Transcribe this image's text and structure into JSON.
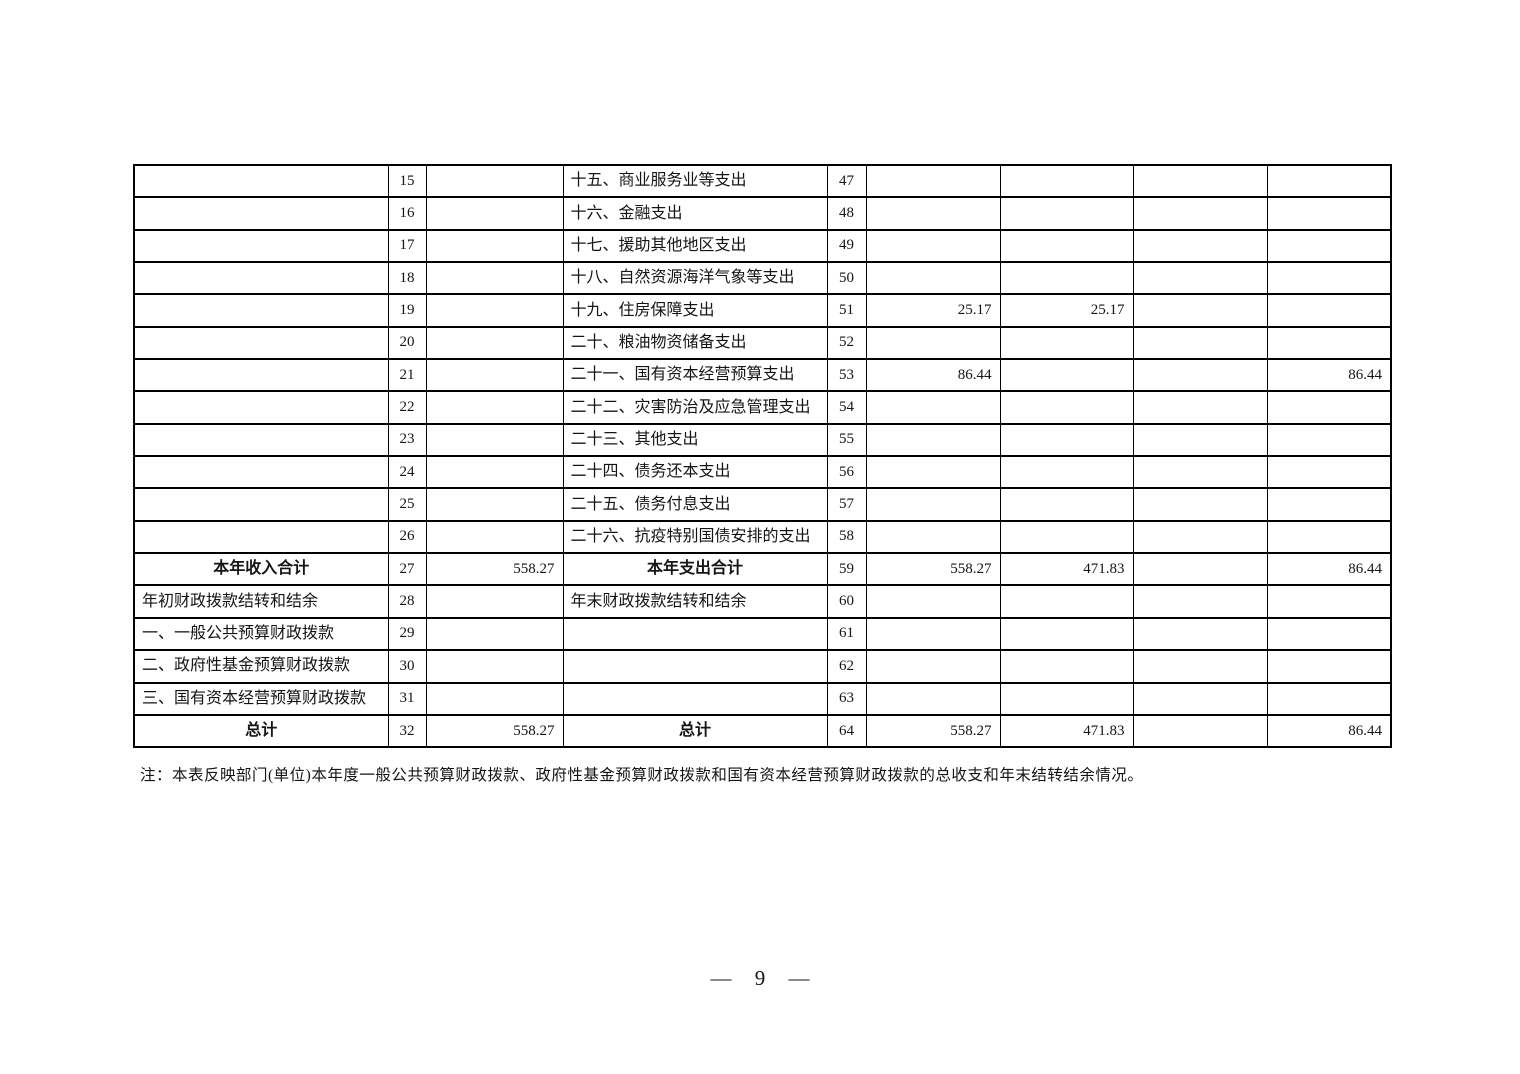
{
  "document": {
    "note": "注：本表反映部门(单位)本年度一般公共预算财政拨款、政府性基金预算财政拨款和国有资本经营预算财政拨款的总收支和年末结转结余情况。",
    "page_number": "— 9 —"
  },
  "table": {
    "column_names": [
      "income_item",
      "income_line_no",
      "income_amount",
      "expense_item",
      "expense_line_no",
      "expense_total",
      "expense_general_public_budget",
      "expense_government_fund",
      "expense_state_capital"
    ],
    "rows": [
      {
        "income": {
          "label": "",
          "line": "15",
          "amount": "",
          "align": "left",
          "bold": false
        },
        "expense": {
          "label": "十五、商业服务业等支出",
          "line": "47",
          "total": "",
          "general_budget": "",
          "gov_fund": "",
          "state_capital": "",
          "align": "left",
          "bold": false
        }
      },
      {
        "income": {
          "label": "",
          "line": "16",
          "amount": "",
          "align": "left",
          "bold": false
        },
        "expense": {
          "label": "十六、金融支出",
          "line": "48",
          "total": "",
          "general_budget": "",
          "gov_fund": "",
          "state_capital": "",
          "align": "left",
          "bold": false
        }
      },
      {
        "income": {
          "label": "",
          "line": "17",
          "amount": "",
          "align": "left",
          "bold": false
        },
        "expense": {
          "label": "十七、援助其他地区支出",
          "line": "49",
          "total": "",
          "general_budget": "",
          "gov_fund": "",
          "state_capital": "",
          "align": "left",
          "bold": false
        }
      },
      {
        "income": {
          "label": "",
          "line": "18",
          "amount": "",
          "align": "left",
          "bold": false
        },
        "expense": {
          "label": "十八、自然资源海洋气象等支出",
          "line": "50",
          "total": "",
          "general_budget": "",
          "gov_fund": "",
          "state_capital": "",
          "align": "left",
          "bold": false
        }
      },
      {
        "income": {
          "label": "",
          "line": "19",
          "amount": "",
          "align": "left",
          "bold": false
        },
        "expense": {
          "label": "十九、住房保障支出",
          "line": "51",
          "total": "25.17",
          "general_budget": "25.17",
          "gov_fund": "",
          "state_capital": "",
          "align": "left",
          "bold": false
        }
      },
      {
        "income": {
          "label": "",
          "line": "20",
          "amount": "",
          "align": "left",
          "bold": false
        },
        "expense": {
          "label": "二十、粮油物资储备支出",
          "line": "52",
          "total": "",
          "general_budget": "",
          "gov_fund": "",
          "state_capital": "",
          "align": "left",
          "bold": false
        }
      },
      {
        "income": {
          "label": "",
          "line": "21",
          "amount": "",
          "align": "left",
          "bold": false
        },
        "expense": {
          "label": "二十一、国有资本经营预算支出",
          "line": "53",
          "total": "86.44",
          "general_budget": "",
          "gov_fund": "",
          "state_capital": "86.44",
          "align": "left",
          "bold": false
        }
      },
      {
        "income": {
          "label": "",
          "line": "22",
          "amount": "",
          "align": "left",
          "bold": false
        },
        "expense": {
          "label": "二十二、灾害防治及应急管理支出",
          "line": "54",
          "total": "",
          "general_budget": "",
          "gov_fund": "",
          "state_capital": "",
          "align": "left",
          "bold": false
        }
      },
      {
        "income": {
          "label": "",
          "line": "23",
          "amount": "",
          "align": "left",
          "bold": false
        },
        "expense": {
          "label": "二十三、其他支出",
          "line": "55",
          "total": "",
          "general_budget": "",
          "gov_fund": "",
          "state_capital": "",
          "align": "left",
          "bold": false
        }
      },
      {
        "income": {
          "label": "",
          "line": "24",
          "amount": "",
          "align": "left",
          "bold": false
        },
        "expense": {
          "label": "二十四、债务还本支出",
          "line": "56",
          "total": "",
          "general_budget": "",
          "gov_fund": "",
          "state_capital": "",
          "align": "left",
          "bold": false
        }
      },
      {
        "income": {
          "label": "",
          "line": "25",
          "amount": "",
          "align": "left",
          "bold": false
        },
        "expense": {
          "label": "二十五、债务付息支出",
          "line": "57",
          "total": "",
          "general_budget": "",
          "gov_fund": "",
          "state_capital": "",
          "align": "left",
          "bold": false
        }
      },
      {
        "income": {
          "label": "",
          "line": "26",
          "amount": "",
          "align": "left",
          "bold": false
        },
        "expense": {
          "label": "二十六、抗疫特别国债安排的支出",
          "line": "58",
          "total": "",
          "general_budget": "",
          "gov_fund": "",
          "state_capital": "",
          "align": "left",
          "bold": false
        }
      },
      {
        "income": {
          "label": "本年收入合计",
          "line": "27",
          "amount": "558.27",
          "align": "center",
          "bold": true
        },
        "expense": {
          "label": "本年支出合计",
          "line": "59",
          "total": "558.27",
          "general_budget": "471.83",
          "gov_fund": "",
          "state_capital": "86.44",
          "align": "center",
          "bold": true
        }
      },
      {
        "income": {
          "label": "年初财政拨款结转和结余",
          "line": "28",
          "amount": "",
          "align": "left",
          "bold": false
        },
        "expense": {
          "label": "年末财政拨款结转和结余",
          "line": "60",
          "total": "",
          "general_budget": "",
          "gov_fund": "",
          "state_capital": "",
          "align": "left",
          "bold": false
        }
      },
      {
        "income": {
          "label": "一、一般公共预算财政拨款",
          "line": "29",
          "amount": "",
          "align": "left",
          "bold": false
        },
        "expense": {
          "label": "",
          "line": "61",
          "total": "",
          "general_budget": "",
          "gov_fund": "",
          "state_capital": "",
          "align": "left",
          "bold": false
        }
      },
      {
        "income": {
          "label": "二、政府性基金预算财政拨款",
          "line": "30",
          "amount": "",
          "align": "left",
          "bold": false
        },
        "expense": {
          "label": "",
          "line": "62",
          "total": "",
          "general_budget": "",
          "gov_fund": "",
          "state_capital": "",
          "align": "left",
          "bold": false
        }
      },
      {
        "income": {
          "label": "三、国有资本经营预算财政拨款",
          "line": "31",
          "amount": "",
          "align": "left",
          "bold": false
        },
        "expense": {
          "label": "",
          "line": "63",
          "total": "",
          "general_budget": "",
          "gov_fund": "",
          "state_capital": "",
          "align": "left",
          "bold": false
        }
      },
      {
        "income": {
          "label": "总计",
          "line": "32",
          "amount": "558.27",
          "align": "center",
          "bold": true
        },
        "expense": {
          "label": "总计",
          "line": "64",
          "total": "558.27",
          "general_budget": "471.83",
          "gov_fund": "",
          "state_capital": "86.44",
          "align": "center",
          "bold": true
        }
      }
    ]
  }
}
